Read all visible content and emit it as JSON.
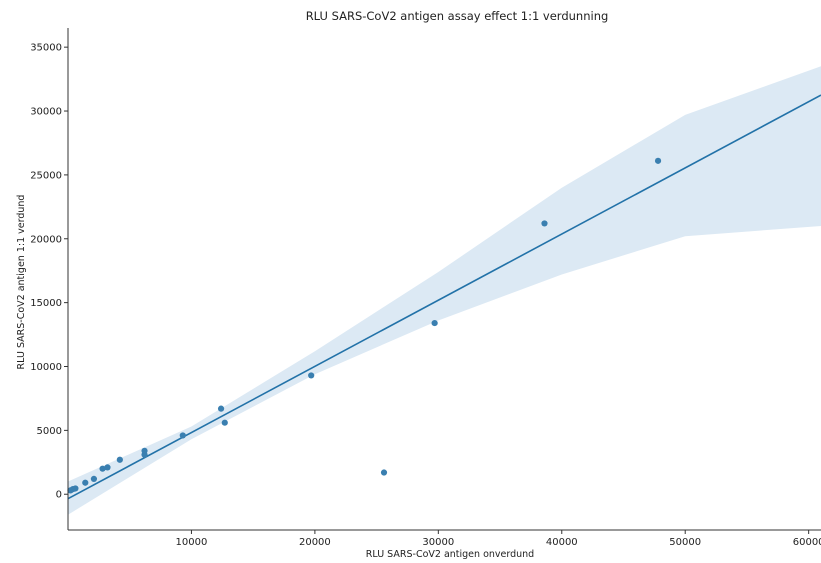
{
  "chart_data": {
    "type": "scatter",
    "title": "RLU SARS-CoV2 antigen assay effect 1:1 verdunning",
    "xlabel": "RLU SARS-CoV2 antigen onverdund",
    "ylabel": "RLU SARS-CoV2 antigen 1:1 verdund",
    "xlim": [
      0,
      61000
    ],
    "ylim": [
      -2800,
      36500
    ],
    "x_ticks": [
      10000,
      20000,
      30000,
      40000,
      50000,
      60000
    ],
    "y_ticks": [
      0,
      5000,
      10000,
      15000,
      20000,
      25000,
      30000,
      35000
    ],
    "grid": false,
    "points": [
      {
        "x": 200,
        "y": 300
      },
      {
        "x": 400,
        "y": 400
      },
      {
        "x": 600,
        "y": 450
      },
      {
        "x": 1400,
        "y": 900
      },
      {
        "x": 2100,
        "y": 1200
      },
      {
        "x": 2800,
        "y": 2000
      },
      {
        "x": 3200,
        "y": 2100
      },
      {
        "x": 4200,
        "y": 2700
      },
      {
        "x": 6200,
        "y": 3100
      },
      {
        "x": 6200,
        "y": 3400
      },
      {
        "x": 9300,
        "y": 4600
      },
      {
        "x": 12400,
        "y": 6700
      },
      {
        "x": 12700,
        "y": 5600
      },
      {
        "x": 19700,
        "y": 9300
      },
      {
        "x": 25600,
        "y": 1700
      },
      {
        "x": 29700,
        "y": 13400
      },
      {
        "x": 38600,
        "y": 21200
      },
      {
        "x": 47800,
        "y": 26100
      }
    ],
    "regression": {
      "slope": 0.518,
      "intercept": -350
    },
    "confidence_band": [
      {
        "x": 0,
        "lower": -1600,
        "upper": 1000
      },
      {
        "x": 10000,
        "lower": 4300,
        "upper": 5300
      },
      {
        "x": 20000,
        "lower": 9400,
        "upper": 11200
      },
      {
        "x": 30000,
        "lower": 13600,
        "upper": 17400
      },
      {
        "x": 40000,
        "lower": 17200,
        "upper": 24000
      },
      {
        "x": 50000,
        "lower": 20200,
        "upper": 29700
      },
      {
        "x": 61000,
        "lower": 21000,
        "upper": 33500
      }
    ],
    "colors": {
      "points": "#3a7fb0",
      "line": "#2272a8",
      "band": "#dce9f4"
    }
  }
}
